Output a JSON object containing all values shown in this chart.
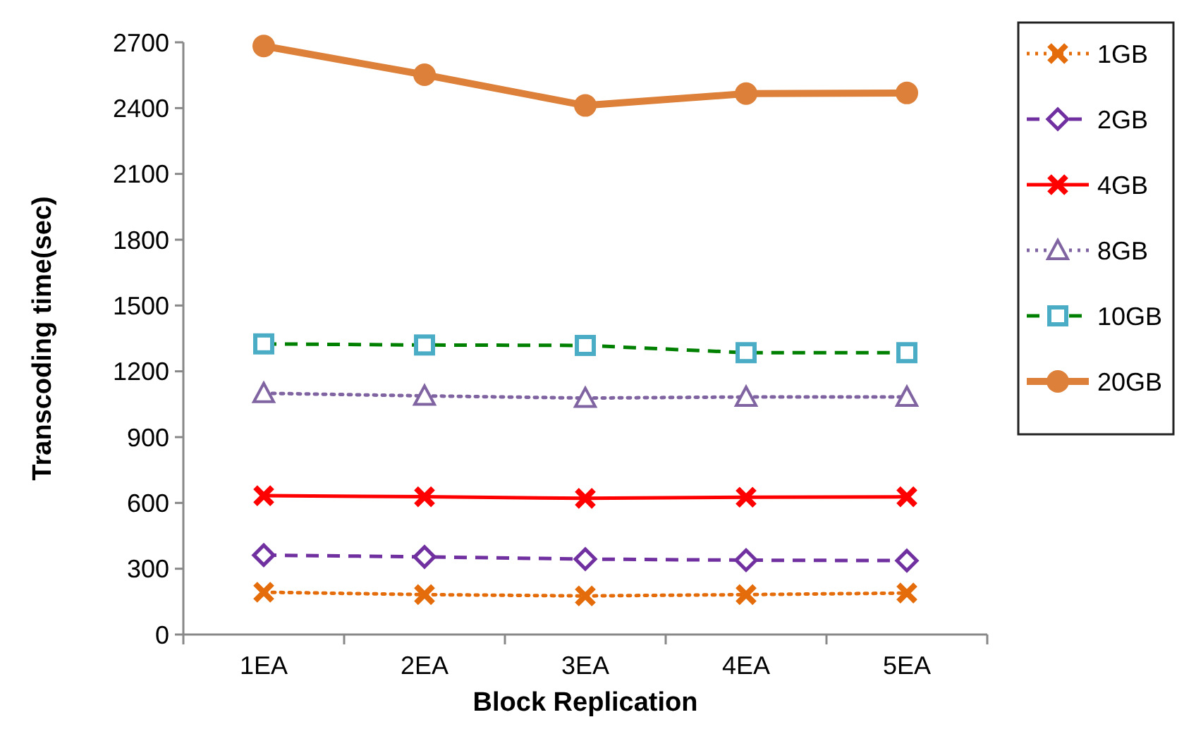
{
  "chart_data": {
    "type": "line",
    "xlabel": "Block Replication",
    "ylabel": "Transcoding  time(sec)",
    "categories": [
      "1EA",
      "2EA",
      "3EA",
      "4EA",
      "5EA"
    ],
    "ylim": [
      0,
      2700
    ],
    "yticks": [
      0,
      300,
      600,
      900,
      1200,
      1500,
      1800,
      2100,
      2400,
      2700
    ],
    "grid": false,
    "legend": "top right",
    "series": [
      {
        "name": "1GB",
        "color": "#e46c0a",
        "values": [
          193,
          182,
          176,
          182,
          189
        ],
        "marker": "cross",
        "line_style": "dotted"
      },
      {
        "name": "2GB",
        "color": "#7030a0",
        "values": [
          362,
          354,
          344,
          339,
          337
        ],
        "marker": "diamond",
        "line_style": "dashed"
      },
      {
        "name": "4GB",
        "color": "#ff0000",
        "values": [
          633,
          628,
          621,
          626,
          628
        ],
        "marker": "cross",
        "line_style": "solid"
      },
      {
        "name": "8GB",
        "color": "#8064a2",
        "values": [
          1100,
          1088,
          1078,
          1083,
          1083
        ],
        "marker": "triangle",
        "line_style": "dotted"
      },
      {
        "name": "10GB",
        "color": "#008000",
        "values": [
          1325,
          1320,
          1318,
          1285,
          1285
        ],
        "marker": "square",
        "line_style": "dashed"
      },
      {
        "name": "20GB",
        "color": "#dd8039",
        "values": [
          2683,
          2552,
          2412,
          2466,
          2469
        ],
        "marker": "circle",
        "line_style": "solid"
      }
    ]
  }
}
